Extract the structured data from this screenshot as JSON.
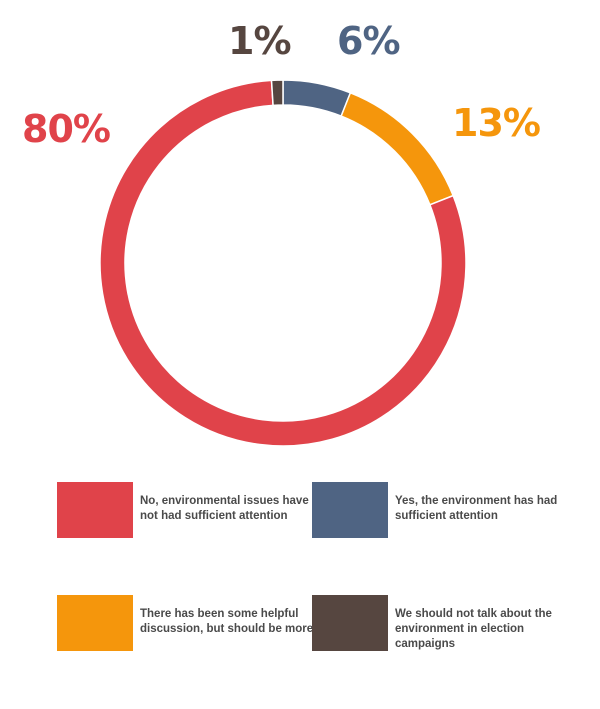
{
  "chart_data": {
    "type": "pie",
    "subtype": "donut",
    "title": "",
    "categories": [
      "Yes, the environment has had sufficient attention",
      "There has been some helpful discussion, but should be more",
      "No, environmental issues have not had sufficient attention",
      "We should not talk about the environment in election campaigns"
    ],
    "values": [
      6,
      13,
      80,
      1
    ],
    "data_labels": [
      "6%",
      "13%",
      "80%",
      "1%"
    ],
    "colors": [
      "#4f6483",
      "#f5960c",
      "#e0434a",
      "#564640"
    ],
    "legend_position": "bottom"
  },
  "legend": [
    {
      "label": "No, environmental issues have not had sufficient attention",
      "color": "#e0434a"
    },
    {
      "label": "Yes, the environment has had sufficient attention",
      "color": "#4f6483"
    },
    {
      "label": "There has been some helpful discussion, but should be more",
      "color": "#f5960c"
    },
    {
      "label": "We should not talk about the environment in election campaigns",
      "color": "#564640"
    }
  ]
}
